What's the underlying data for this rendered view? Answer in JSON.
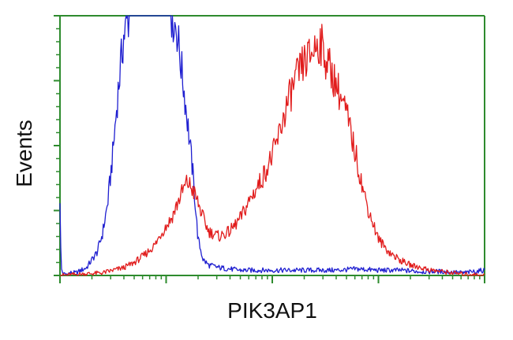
{
  "chart_data": {
    "type": "line",
    "xlabel": "PIK3AP1",
    "ylabel": "Events",
    "x_scale": "log",
    "x_decades": [
      0,
      4
    ],
    "ylim": [
      0,
      100
    ],
    "grid": false,
    "colors": {
      "axes": "#2e8b2e",
      "blue": "#1f1fd0",
      "red": "#e11c1c"
    },
    "series": [
      {
        "color": "blue",
        "x": [
          0.0,
          0.01,
          0.03,
          0.06,
          0.1,
          0.15,
          0.2,
          0.25,
          0.3,
          0.35,
          0.4,
          0.45,
          0.5,
          0.55,
          0.6,
          0.65,
          0.7,
          0.75,
          0.8,
          0.85,
          0.9,
          0.95,
          1.0,
          1.05,
          1.1,
          1.15,
          1.2,
          1.25,
          1.3,
          1.35,
          1.4,
          1.5,
          1.6,
          1.7,
          1.8,
          2.0,
          2.2,
          2.4,
          2.6,
          2.8,
          3.0,
          3.2,
          3.4,
          3.6,
          3.8,
          4.0
        ],
        "y": [
          30,
          3,
          0.5,
          0.5,
          1,
          1,
          2,
          3,
          6,
          9,
          16,
          28,
          48,
          72,
          92,
          100,
          100,
          100,
          100,
          100,
          100,
          100,
          100,
          100,
          95,
          78,
          60,
          40,
          14,
          6,
          4,
          3,
          2.5,
          2,
          2,
          2,
          2,
          2,
          2,
          2.5,
          2,
          2,
          1.5,
          1.5,
          1,
          2
        ]
      },
      {
        "color": "red",
        "x": [
          0.0,
          0.2,
          0.4,
          0.5,
          0.6,
          0.7,
          0.8,
          0.9,
          0.95,
          1.0,
          1.05,
          1.1,
          1.15,
          1.2,
          1.25,
          1.3,
          1.35,
          1.4,
          1.5,
          1.6,
          1.7,
          1.8,
          1.9,
          2.0,
          2.05,
          2.1,
          2.15,
          2.2,
          2.25,
          2.3,
          2.35,
          2.4,
          2.45,
          2.5,
          2.6,
          2.7,
          2.8,
          2.85,
          2.9,
          2.95,
          3.0,
          3.1,
          3.2,
          3.3,
          3.4,
          3.5,
          3.6,
          3.7,
          3.8,
          4.0
        ],
        "y": [
          0,
          0.5,
          1,
          2,
          3,
          5,
          8,
          12,
          16,
          19,
          22,
          27,
          32,
          36,
          33,
          28,
          22,
          17,
          15,
          17,
          22,
          30,
          37,
          46,
          52,
          60,
          67,
          73,
          78,
          82,
          84,
          88,
          90,
          84,
          74,
          62,
          44,
          34,
          26,
          20,
          14,
          9,
          6,
          4,
          3,
          2,
          1.5,
          1,
          0.5,
          0
        ]
      }
    ]
  }
}
